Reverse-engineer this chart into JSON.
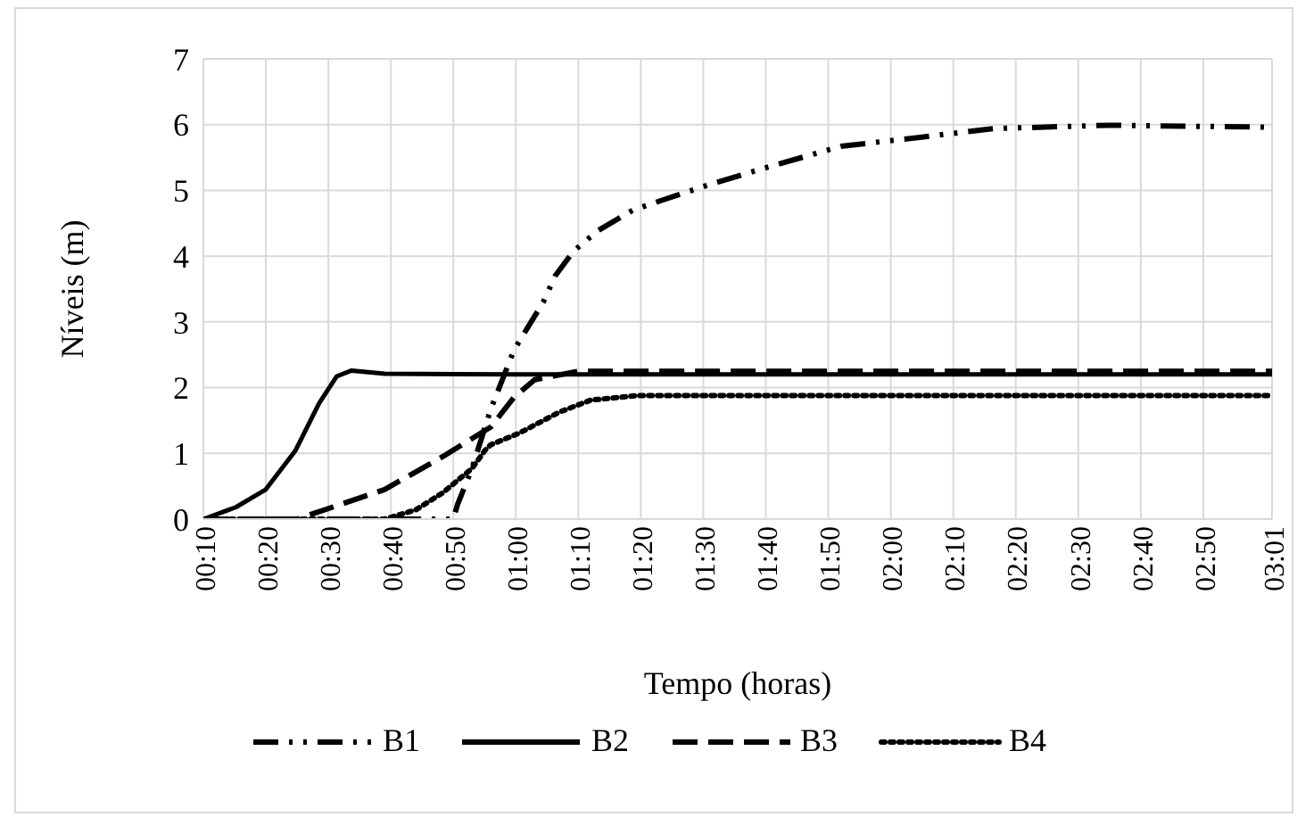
{
  "chart_data": {
    "type": "line",
    "xlabel": "Tempo (horas)",
    "ylabel": "Níveis (m)",
    "xlim": [
      0.1667,
      3.0167
    ],
    "xticks": [
      {
        "value": 0.1667,
        "label": "00:10"
      },
      {
        "value": 0.3333,
        "label": "00:20"
      },
      {
        "value": 0.5,
        "label": "00:30"
      },
      {
        "value": 0.6667,
        "label": "00:40"
      },
      {
        "value": 0.8333,
        "label": "00:50"
      },
      {
        "value": 1,
        "label": "01:00"
      },
      {
        "value": 1.1667,
        "label": "01:10"
      },
      {
        "value": 1.3333,
        "label": "01:20"
      },
      {
        "value": 1.5,
        "label": "01:30"
      },
      {
        "value": 1.6667,
        "label": "01:40"
      },
      {
        "value": 1.8333,
        "label": "01:50"
      },
      {
        "value": 2,
        "label": "02:00"
      },
      {
        "value": 2.1667,
        "label": "02:10"
      },
      {
        "value": 2.3333,
        "label": "02:20"
      },
      {
        "value": 2.5,
        "label": "02:30"
      },
      {
        "value": 2.6667,
        "label": "02:40"
      },
      {
        "value": 2.8333,
        "label": "02:50"
      },
      {
        "value": 3.0167,
        "label": "03:01"
      }
    ],
    "ylim": [
      0,
      7
    ],
    "yticks": [
      0,
      1,
      2,
      3,
      4,
      5,
      6,
      7
    ],
    "grid": true,
    "legend": "bottom",
    "marker": "none",
    "series": [
      {
        "name": "B1",
        "color": "#000000",
        "line_style": "dashed",
        "x": [
          0.167,
          0.833,
          0.845,
          0.883,
          0.933,
          0.995,
          1.073,
          1.105,
          1.153,
          1.217,
          1.312,
          1.39,
          1.517,
          1.658,
          1.867,
          2.083,
          2.273,
          2.583,
          3.0167
        ],
        "values": [
          0,
          0,
          0.23,
          0.77,
          1.67,
          2.57,
          3.3,
          3.7,
          4.07,
          4.38,
          4.7,
          4.85,
          5.09,
          5.33,
          5.67,
          5.81,
          5.94,
          5.99,
          5.96
        ]
      },
      {
        "name": "B2",
        "color": "#000000",
        "line_style": "solid",
        "x": [
          0.167,
          0.253,
          0.333,
          0.412,
          0.475,
          0.522,
          0.562,
          0.65,
          1.0,
          3.0167
        ],
        "values": [
          0,
          0.18,
          0.45,
          1.04,
          1.76,
          2.17,
          2.26,
          2.21,
          2.2,
          2.2
        ]
      },
      {
        "name": "B3",
        "color": "#000000",
        "line_style": "dashed",
        "x": [
          0.167,
          0.417,
          0.65,
          0.805,
          0.933,
          0.995,
          1.05,
          1.167,
          3.0167
        ],
        "values": [
          0,
          0,
          0.45,
          0.95,
          1.4,
          1.85,
          2.12,
          2.25,
          2.25
        ]
      },
      {
        "name": "B4",
        "color": "#000000",
        "line_style": "dotted",
        "x": [
          0.167,
          0.65,
          0.733,
          0.805,
          0.883,
          0.917,
          0.933,
          1.01,
          1.117,
          1.2,
          1.327,
          3.0167
        ],
        "values": [
          0,
          0,
          0.14,
          0.4,
          0.77,
          1.04,
          1.13,
          1.31,
          1.63,
          1.81,
          1.88,
          1.88
        ]
      }
    ]
  }
}
